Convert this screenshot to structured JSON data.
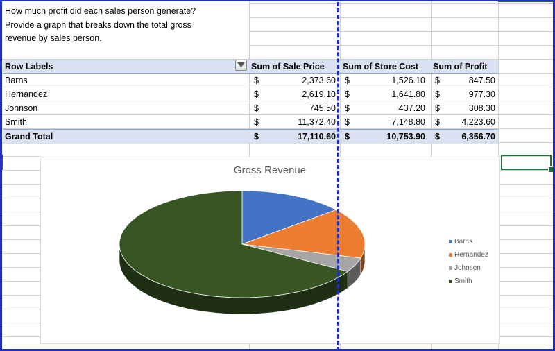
{
  "question": "How much profit did each sales person generate?\nProvide a graph that breaks down the total gross\nrevenue by sales person.",
  "pivot": {
    "headers": {
      "row_labels": "Row Labels",
      "sale_price": "Sum of Sale Price",
      "store_cost": "Sum of Store Cost",
      "profit": "Sum of Profit"
    },
    "currency": "$",
    "rows": [
      {
        "name": "Barns",
        "sale_price": "2,373.60",
        "store_cost": "1,526.10",
        "profit": "847.50"
      },
      {
        "name": "Hernandez",
        "sale_price": "2,619.10",
        "store_cost": "1,641.80",
        "profit": "977.30"
      },
      {
        "name": "Johnson",
        "sale_price": "745.50",
        "store_cost": "437.20",
        "profit": "308.30"
      },
      {
        "name": "Smith",
        "sale_price": "11,372.40",
        "store_cost": "7,148.80",
        "profit": "4,223.60"
      }
    ],
    "total": {
      "name": "Grand Total",
      "sale_price": "17,110.60",
      "store_cost": "10,753.90",
      "profit": "6,356.70"
    }
  },
  "chart_data": {
    "type": "pie",
    "title": "Gross Revenue",
    "categories": [
      "Barns",
      "Hernandez",
      "Johnson",
      "Smith"
    ],
    "values": [
      2373.6,
      2619.1,
      745.5,
      11372.4
    ],
    "colors": [
      "#4472c4",
      "#ed7d31",
      "#a5a5a5",
      "#375623"
    ],
    "legend_position": "right",
    "style": "3d"
  },
  "colors": {
    "header_band": "#d9e1f2",
    "page_break": "#1f2fbf",
    "selection": "#1e6e3a"
  },
  "icons": {
    "filter": "filter-dropdown-icon"
  }
}
